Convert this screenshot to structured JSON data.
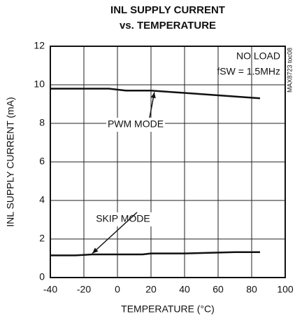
{
  "chart_data": {
    "type": "line",
    "title": [
      "INL SUPPLY CURRENT",
      "vs. TEMPERATURE"
    ],
    "x_label": "TEMPERATURE (°C)",
    "y_label": "INL SUPPLY CURRENT (mA)",
    "annotations": [
      "NO LOAD",
      "fSW = 1.5MHz",
      "MAX8723 toc08",
      "PWM MODE",
      "SKIP MODE"
    ],
    "series": [
      {
        "name": "PWM MODE",
        "color": "#111111",
        "x": [
          -40,
          -5,
          5,
          20,
          85
        ],
        "values": [
          9.8,
          9.8,
          9.7,
          9.7,
          9.3
        ]
      },
      {
        "name": "SKIP MODE",
        "color": "#111111",
        "x": [
          -40,
          -25,
          -15,
          15,
          20,
          40,
          70,
          85
        ],
        "values": [
          1.15,
          1.15,
          1.2,
          1.2,
          1.25,
          1.25,
          1.32,
          1.32
        ]
      }
    ],
    "xlim": [
      -40,
      100
    ],
    "xticks": [
      -40,
      -20,
      0,
      20,
      40,
      60,
      80,
      100
    ],
    "ylim": [
      0,
      12
    ],
    "yticks": [
      0,
      2,
      4,
      6,
      8,
      10,
      12
    ],
    "grid": true
  }
}
